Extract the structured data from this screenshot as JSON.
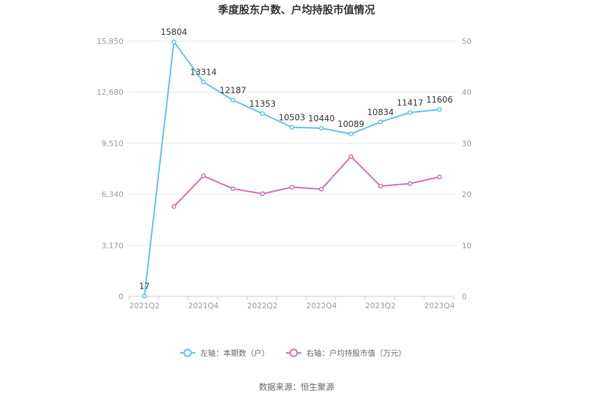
{
  "chart_data": {
    "type": "line",
    "title": "季度股东户数、户均持股市值情况",
    "source": "数据来源：恒生聚源",
    "categories": [
      "2021Q2",
      "2021Q3",
      "2021Q4",
      "2022Q1",
      "2022Q2",
      "2022Q3",
      "2022Q4",
      "2023Q1",
      "2023Q2",
      "2023Q3",
      "2023Q4"
    ],
    "x_tick_labels": [
      "2021Q2",
      "2021Q4",
      "2022Q2",
      "2022Q4",
      "2023Q2",
      "2023Q4"
    ],
    "y_left": {
      "min": 0,
      "max": 15850,
      "ticks": [
        "0",
        "3,170",
        "6,340",
        "9,510",
        "12,680",
        "15,850"
      ]
    },
    "y_right": {
      "min": 0,
      "max": 50,
      "ticks": [
        "0",
        "10",
        "20",
        "30",
        "40",
        "50"
      ]
    },
    "grid": true,
    "legend_position": "bottom",
    "series": [
      {
        "name": "左轴：本期数（户）",
        "axis": "left",
        "color": "#5bc0ee",
        "values": [
          17,
          15804,
          13314,
          12187,
          11353,
          10503,
          10440,
          10089,
          10834,
          11417,
          11606
        ],
        "labels": [
          "17",
          "15804",
          "13314",
          "12187",
          "11353",
          "10503",
          "10440",
          "10089",
          "10834",
          "11417",
          "11606"
        ]
      },
      {
        "name": "右轴：户均持股市值（万元）",
        "axis": "right",
        "color": "#d36ab1",
        "values": [
          null,
          17.6,
          23.6,
          21.1,
          20.1,
          21.4,
          21.0,
          27.4,
          21.6,
          22.1,
          23.4
        ]
      }
    ]
  }
}
